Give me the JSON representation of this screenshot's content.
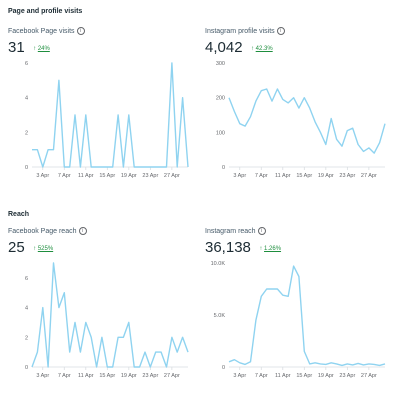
{
  "sections": {
    "page_profile_visits": "Page and profile visits",
    "reach": "Reach"
  },
  "info_glyph": "i",
  "colors": {
    "line": "#8fd3f0",
    "axis": "#d9dde1",
    "positive": "#1e8e3e"
  },
  "cards": [
    {
      "title": "Facebook Page visits",
      "value": "31",
      "arrow": "↑",
      "change": "24%"
    },
    {
      "title": "Instagram profile visits",
      "value": "4,042",
      "arrow": "↑",
      "change": "42.3%"
    },
    {
      "title": "Facebook Page reach",
      "value": "25",
      "arrow": "↑",
      "change": "525%"
    },
    {
      "title": "Instagram reach",
      "value": "36,138",
      "arrow": "↑",
      "change": "1.26%"
    }
  ],
  "chart_data": [
    {
      "type": "line",
      "title": "Facebook Page visits",
      "x_ticks": [
        "3 Apr",
        "7 Apr",
        "11 Apr",
        "15 Apr",
        "19 Apr",
        "23 Apr",
        "27 Apr"
      ],
      "y_ticks": [
        "0",
        "2",
        "4",
        "6"
      ],
      "ylim": [
        0,
        6
      ],
      "x": [
        1,
        2,
        3,
        4,
        5,
        6,
        7,
        8,
        9,
        10,
        11,
        12,
        13,
        14,
        15,
        16,
        17,
        18,
        19,
        20,
        21,
        22,
        23,
        24,
        25,
        26,
        27,
        28,
        29,
        30
      ],
      "values": [
        1,
        1,
        0,
        1,
        1,
        5,
        0,
        0,
        3,
        0,
        3,
        0,
        0,
        0,
        0,
        0,
        3,
        0,
        3,
        0,
        0,
        0,
        0,
        0,
        0,
        0,
        6,
        0,
        4,
        0
      ]
    },
    {
      "type": "line",
      "title": "Instagram profile visits",
      "x_ticks": [
        "3 Apr",
        "7 Apr",
        "11 Apr",
        "15 Apr",
        "19 Apr",
        "23 Apr",
        "27 Apr"
      ],
      "y_ticks": [
        "0",
        "100",
        "200",
        "300"
      ],
      "ylim": [
        0,
        300
      ],
      "x": [
        1,
        2,
        3,
        4,
        5,
        6,
        7,
        8,
        9,
        10,
        11,
        12,
        13,
        14,
        15,
        16,
        17,
        18,
        19,
        20,
        21,
        22,
        23,
        24,
        25,
        26,
        27,
        28,
        29,
        30
      ],
      "values": [
        200,
        160,
        125,
        118,
        145,
        190,
        220,
        225,
        190,
        225,
        195,
        185,
        200,
        170,
        200,
        170,
        130,
        100,
        65,
        140,
        80,
        60,
        105,
        112,
        65,
        45,
        55,
        40,
        70,
        125
      ]
    },
    {
      "type": "line",
      "title": "Facebook Page reach",
      "x_ticks": [
        "3 Apr",
        "7 Apr",
        "11 Apr",
        "15 Apr",
        "19 Apr",
        "23 Apr",
        "27 Apr"
      ],
      "y_ticks": [
        "0",
        "2",
        "4",
        "6"
      ],
      "ylim": [
        0,
        7
      ],
      "x": [
        1,
        2,
        3,
        4,
        5,
        6,
        7,
        8,
        9,
        10,
        11,
        12,
        13,
        14,
        15,
        16,
        17,
        18,
        19,
        20,
        21,
        22,
        23,
        24,
        25,
        26,
        27,
        28,
        29,
        30
      ],
      "values": [
        0,
        1,
        4,
        0,
        7,
        4,
        5,
        1,
        3,
        1,
        3,
        2,
        0,
        2,
        0,
        0,
        2,
        2,
        3,
        0,
        0,
        1,
        0,
        1,
        1,
        0,
        2,
        1,
        2,
        1
      ]
    },
    {
      "type": "line",
      "title": "Instagram reach",
      "x_ticks": [
        "3 Apr",
        "7 Apr",
        "11 Apr",
        "15 Apr",
        "19 Apr",
        "23 Apr",
        "27 Apr"
      ],
      "y_ticks": [
        "0",
        "5.0K",
        "10.0K"
      ],
      "ylim": [
        0,
        10000
      ],
      "x": [
        1,
        2,
        3,
        4,
        5,
        6,
        7,
        8,
        9,
        10,
        11,
        12,
        13,
        14,
        15,
        16,
        17,
        18,
        19,
        20,
        21,
        22,
        23,
        24,
        25,
        26,
        27,
        28,
        29,
        30
      ],
      "values": [
        500,
        700,
        400,
        250,
        500,
        4500,
        6800,
        7500,
        7500,
        7500,
        6900,
        6800,
        9700,
        8700,
        1500,
        300,
        400,
        300,
        250,
        400,
        300,
        150,
        300,
        200,
        350,
        200,
        300,
        250,
        150,
        300
      ]
    }
  ]
}
